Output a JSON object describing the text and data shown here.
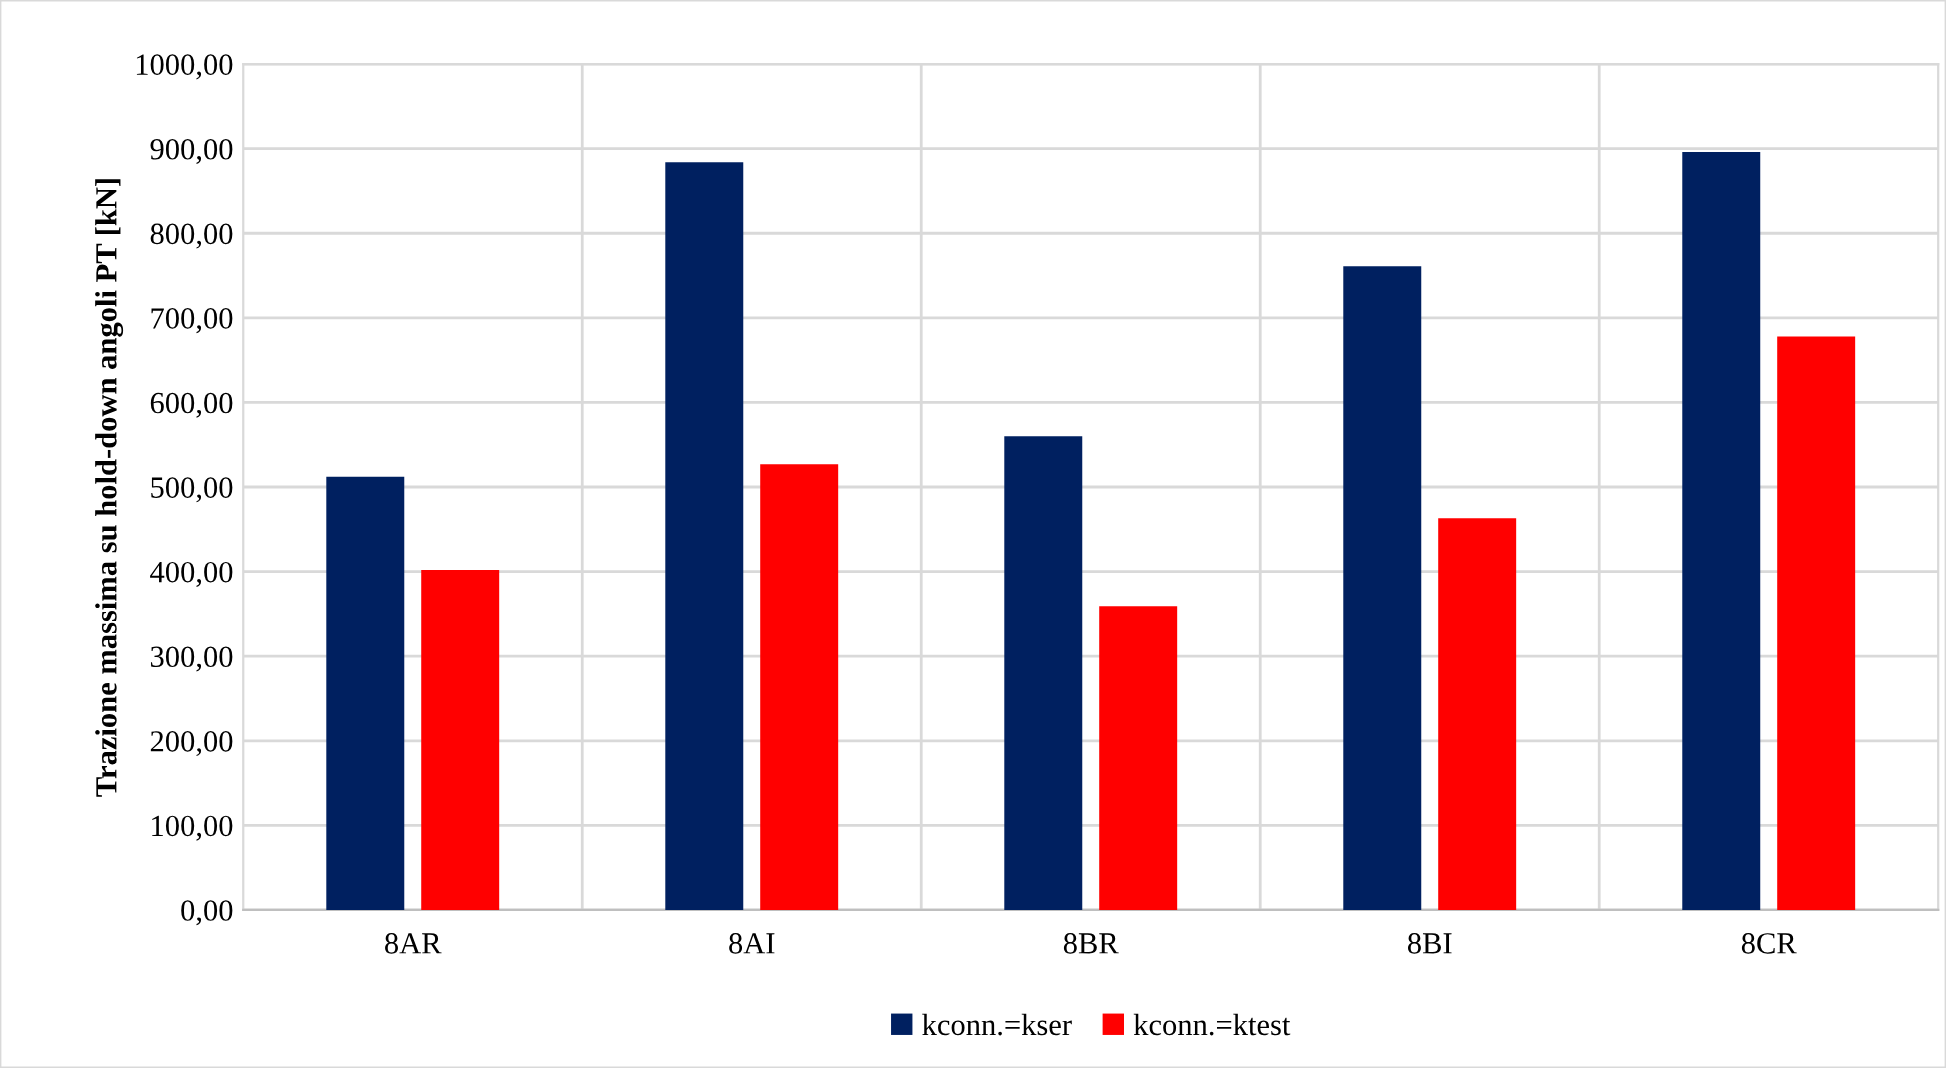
{
  "chart_data": {
    "type": "bar",
    "ylabel": "Trazione massima su hold-down angoli PT [kN]",
    "categories": [
      "8AR",
      "8AI",
      "8BR",
      "8BI",
      "8CR"
    ],
    "series": [
      {
        "name": "kconn.=kser",
        "color": "#002060",
        "values": [
          512,
          884,
          560,
          761,
          896
        ]
      },
      {
        "name": "kconn.=ktest",
        "color": "#ff0000",
        "values": [
          402,
          527,
          359,
          463,
          678
        ]
      }
    ],
    "ylim": [
      0,
      1000
    ],
    "yticks": [
      {
        "value": 0,
        "label": "0,00"
      },
      {
        "value": 100,
        "label": "100,00"
      },
      {
        "value": 200,
        "label": "200,00"
      },
      {
        "value": 300,
        "label": "300,00"
      },
      {
        "value": 400,
        "label": "400,00"
      },
      {
        "value": 500,
        "label": "500,00"
      },
      {
        "value": 600,
        "label": "600,00"
      },
      {
        "value": 700,
        "label": "700,00"
      },
      {
        "value": 800,
        "label": "800,00"
      },
      {
        "value": 900,
        "label": "900,00"
      },
      {
        "value": 1000,
        "label": "1000,00"
      }
    ],
    "grid": true,
    "legend": "bottom"
  }
}
